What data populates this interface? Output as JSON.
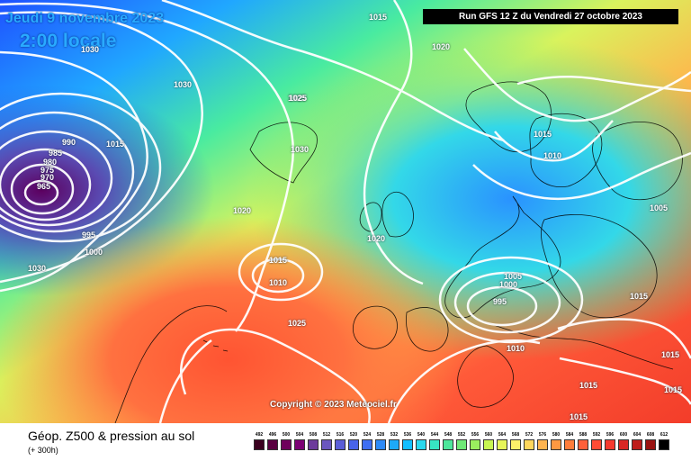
{
  "header": {
    "date_line": "Jeudi 9 novembre 2023",
    "time_line": "2:00 locale",
    "run_info": "Run GFS 12 Z du Vendredi 27 octobre 2023"
  },
  "map": {
    "copyright": "Copyright © 2023 Meteociel.fr",
    "isobar_labels": [
      "1015",
      "1020",
      "1025",
      "1030",
      "990",
      "985",
      "980",
      "975",
      "970",
      "965",
      "995",
      "1000",
      "1030",
      "1025",
      "1015",
      "1020",
      "1030",
      "1015",
      "1010",
      "1025",
      "1020",
      "1015",
      "1010",
      "1005",
      "1015",
      "1005",
      "1000",
      "995",
      "1010",
      "1015",
      "1015",
      "1015",
      "1015",
      "1015"
    ],
    "low_center_values": [
      "965",
      "995"
    ],
    "high_center_values": [
      "1030",
      "1025"
    ]
  },
  "legend": {
    "product": "Géop. Z500 & pression au sol",
    "lead_time": "(+ 300h)",
    "scale_values": [
      "492",
      "496",
      "500",
      "504",
      "508",
      "512",
      "516",
      "520",
      "524",
      "528",
      "532",
      "536",
      "540",
      "544",
      "548",
      "552",
      "556",
      "560",
      "564",
      "568",
      "572",
      "576",
      "580",
      "584",
      "588",
      "592",
      "596",
      "600",
      "604",
      "608",
      "612"
    ],
    "scale_colors": [
      "#3b001f",
      "#5a0040",
      "#6f005c",
      "#7c0074",
      "#6c3b9b",
      "#6b57bf",
      "#5b5ed8",
      "#4963ea",
      "#3f6ef3",
      "#2d8af7",
      "#1da9f7",
      "#12bfff",
      "#2ad8ee",
      "#37e6c3",
      "#4de79b",
      "#6fe977",
      "#9aef5e",
      "#c8f552",
      "#e7f55a",
      "#fcef6a",
      "#ffd65d",
      "#ffb44f",
      "#ff9842",
      "#ff7d3b",
      "#ff603a",
      "#ff4b35",
      "#f53a2f",
      "#d92724",
      "#be1c1a",
      "#991311",
      "#000000"
    ]
  }
}
